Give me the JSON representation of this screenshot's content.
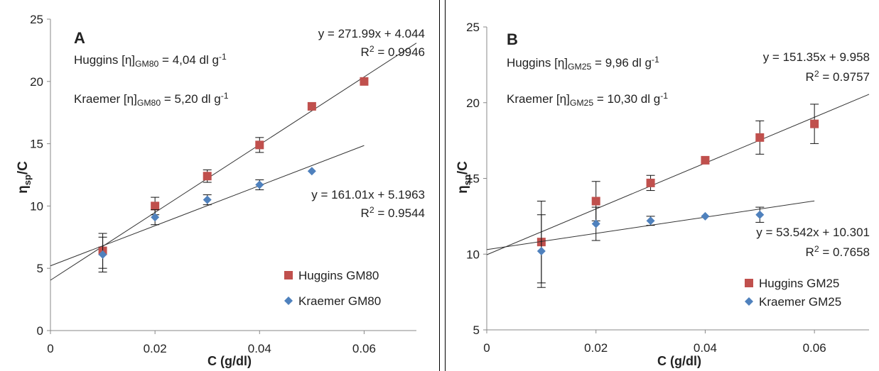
{
  "chart_data": [
    {
      "type": "scatter",
      "panel_label": "A",
      "xlabel": "C (g/dl)",
      "ylabel_main": "η",
      "ylabel_sub": "sp",
      "ylabel_tail": "/C",
      "xlim": [
        0,
        0.07
      ],
      "ylim": [
        0,
        25
      ],
      "x_ticks": [
        "0",
        "0.02",
        "0.04",
        "0.06"
      ],
      "x_tick_values": [
        0,
        0.02,
        0.04,
        0.06
      ],
      "y_ticks": [
        "0",
        "5",
        "10",
        "15",
        "20",
        "25"
      ],
      "y_tick_values": [
        0,
        5,
        10,
        15,
        20,
        25
      ],
      "grid": false,
      "legend_position": "bottom-right",
      "annotations": {
        "huggins": {
          "pre": "Huggins [η]",
          "sub": "GM80",
          "post": " = 4,04 dl g",
          "sup": "-1"
        },
        "kraemer": {
          "pre": "Kraemer [η]",
          "sub": "GM80",
          "post": " = 5,20 dl g",
          "sup": "-1"
        }
      },
      "series": [
        {
          "name": "Huggins GM80",
          "marker": "square",
          "color": "#c0504d",
          "x": [
            0.01,
            0.02,
            0.03,
            0.04,
            0.05,
            0.06
          ],
          "y": [
            6.4,
            10.0,
            12.4,
            14.9,
            18.0,
            20.0
          ],
          "err": [
            1.4,
            0.7,
            0.5,
            0.6,
            0,
            0
          ],
          "equation": "y = 271.99x + 4.044",
          "r2_pre": "R",
          "r2_sup": "2",
          "r2_post": " = 0.9946"
        },
        {
          "name": "Kraemer GM80",
          "marker": "diamond",
          "color": "#4f81bd",
          "x": [
            0.01,
            0.02,
            0.03,
            0.04,
            0.05
          ],
          "y": [
            6.1,
            9.1,
            10.5,
            11.7,
            12.8
          ],
          "err": [
            1.4,
            0.6,
            0.4,
            0.4,
            0
          ],
          "equation": "y = 161.01x + 5.1963",
          "r2_pre": "R",
          "r2_sup": "2",
          "r2_post": " = 0.9544"
        }
      ]
    },
    {
      "type": "scatter",
      "panel_label": "B",
      "xlabel": "C (g/dl)",
      "ylabel_main": "η",
      "ylabel_sub": "sp",
      "ylabel_tail": "/C",
      "xlim": [
        0,
        0.07
      ],
      "ylim": [
        5,
        25
      ],
      "x_ticks": [
        "0",
        "0.02",
        "0.04",
        "0.06"
      ],
      "x_tick_values": [
        0,
        0.02,
        0.04,
        0.06
      ],
      "y_ticks": [
        "5",
        "10",
        "15",
        "20",
        "25"
      ],
      "y_tick_values": [
        5,
        10,
        15,
        20,
        25
      ],
      "grid": false,
      "legend_position": "bottom-right",
      "annotations": {
        "huggins": {
          "pre": "Huggins [η]",
          "sub": "GM25",
          "post": " = 9,96 dl g",
          "sup": "-1"
        },
        "kraemer": {
          "pre": "Kraemer [η]",
          "sub": "GM25",
          "post": " = 10,30 dl g",
          "sup": "-1"
        }
      },
      "series": [
        {
          "name": "Huggins GM25",
          "marker": "square",
          "color": "#c0504d",
          "x": [
            0.01,
            0.02,
            0.03,
            0.04,
            0.05,
            0.06
          ],
          "y": [
            10.8,
            13.5,
            14.7,
            16.2,
            17.7,
            18.6
          ],
          "err": [
            2.7,
            1.3,
            0.5,
            0,
            1.1,
            1.3
          ],
          "equation": "y = 151.35x + 9.958",
          "r2_pre": "R",
          "r2_sup": "2",
          "r2_post": " = 0.9757"
        },
        {
          "name": "Kraemer GM25",
          "marker": "diamond",
          "color": "#4f81bd",
          "x": [
            0.01,
            0.02,
            0.03,
            0.04,
            0.05
          ],
          "y": [
            10.2,
            12.0,
            12.2,
            12.5,
            12.6
          ],
          "err": [
            2.4,
            1.1,
            0.3,
            0,
            0.5
          ],
          "equation": "y = 53.542x + 10.301",
          "r2_pre": "R",
          "r2_sup": "2",
          "r2_post": " = 0.7658"
        }
      ]
    }
  ]
}
